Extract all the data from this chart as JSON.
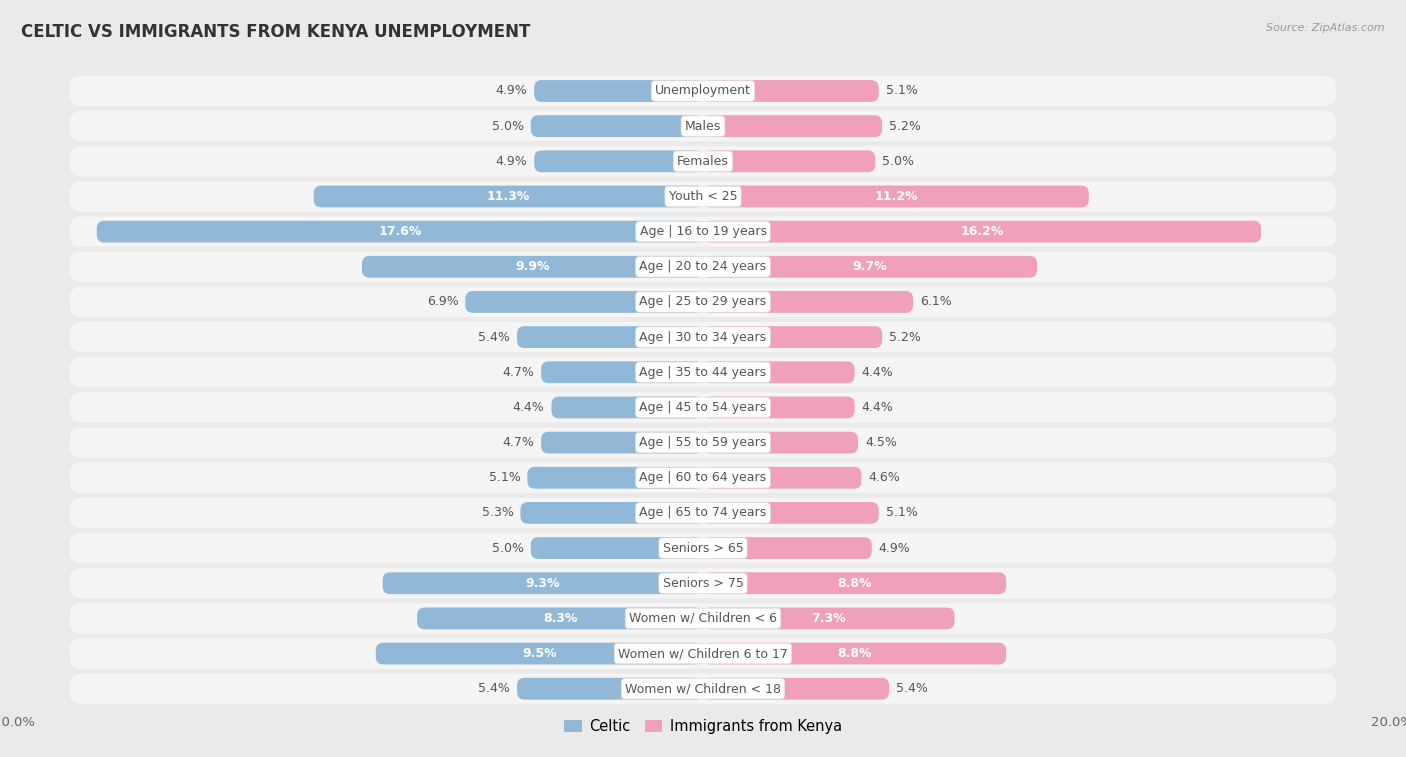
{
  "title": "CELTIC VS IMMIGRANTS FROM KENYA UNEMPLOYMENT",
  "source": "Source: ZipAtlas.com",
  "categories": [
    "Unemployment",
    "Males",
    "Females",
    "Youth < 25",
    "Age | 16 to 19 years",
    "Age | 20 to 24 years",
    "Age | 25 to 29 years",
    "Age | 30 to 34 years",
    "Age | 35 to 44 years",
    "Age | 45 to 54 years",
    "Age | 55 to 59 years",
    "Age | 60 to 64 years",
    "Age | 65 to 74 years",
    "Seniors > 65",
    "Seniors > 75",
    "Women w/ Children < 6",
    "Women w/ Children 6 to 17",
    "Women w/ Children < 18"
  ],
  "celtic_values": [
    4.9,
    5.0,
    4.9,
    11.3,
    17.6,
    9.9,
    6.9,
    5.4,
    4.7,
    4.4,
    4.7,
    5.1,
    5.3,
    5.0,
    9.3,
    8.3,
    9.5,
    5.4
  ],
  "kenya_values": [
    5.1,
    5.2,
    5.0,
    11.2,
    16.2,
    9.7,
    6.1,
    5.2,
    4.4,
    4.4,
    4.5,
    4.6,
    5.1,
    4.9,
    8.8,
    7.3,
    8.8,
    5.4
  ],
  "celtic_color": "#92b8d8",
  "kenya_color": "#f0a0b8",
  "background_color": "#eaeaea",
  "row_bg_color": "#f5f5f5",
  "max_val": 20.0,
  "bar_height": 0.62,
  "label_fontsize": 9.0,
  "title_fontsize": 12,
  "category_fontsize": 9.0,
  "value_inside_threshold": 7.0
}
